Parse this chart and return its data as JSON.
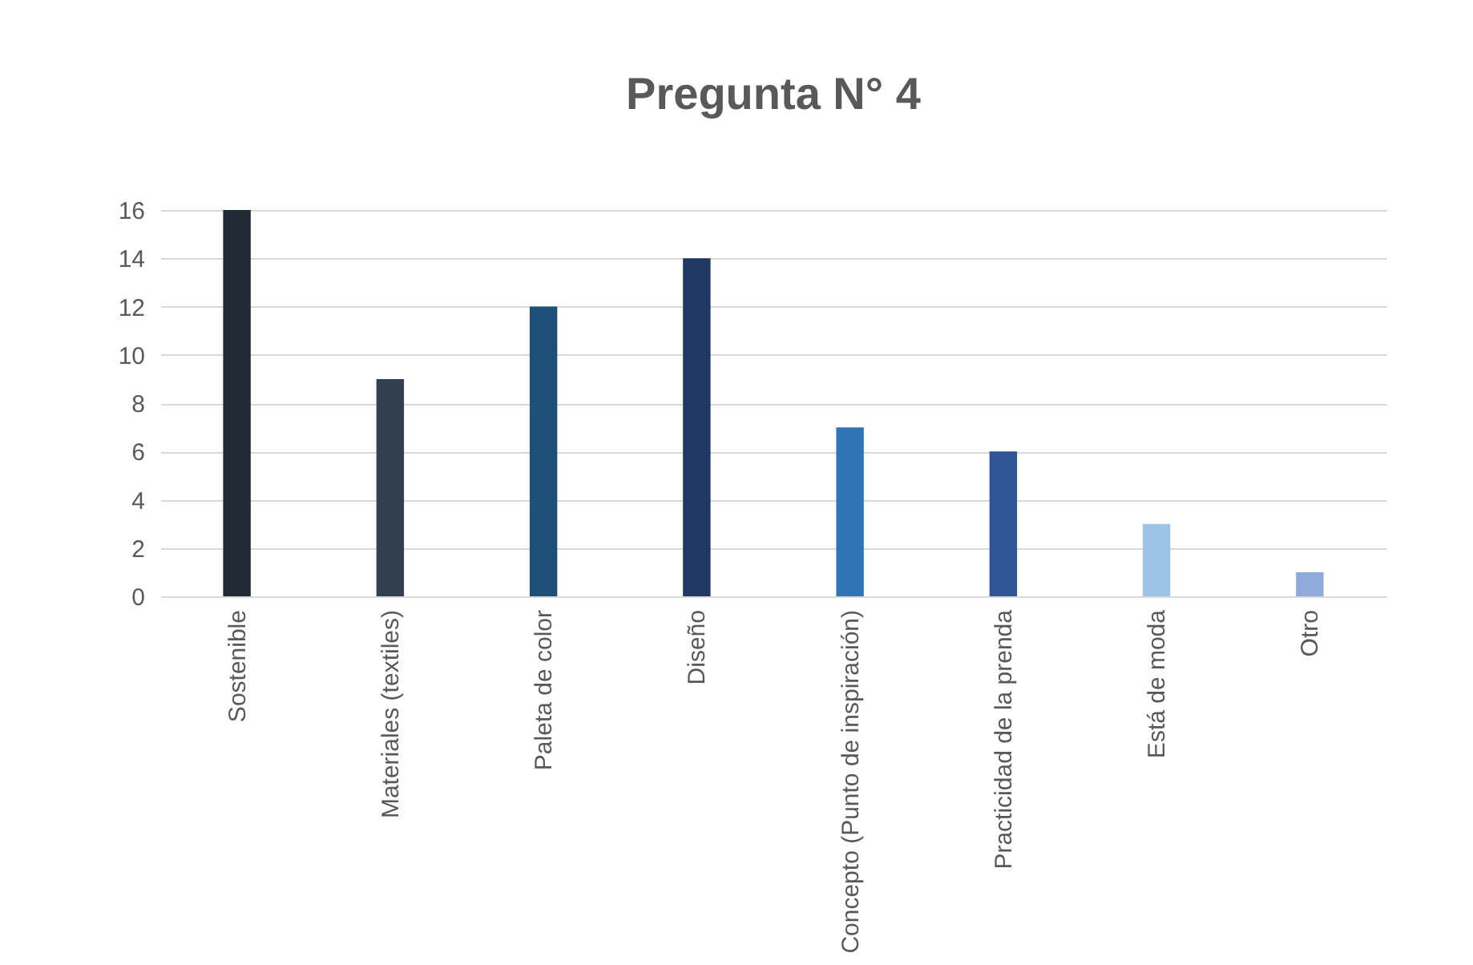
{
  "chart_data": {
    "type": "bar",
    "title": "Pregunta N° 4",
    "categories": [
      "Sostenible",
      "Materiales (textiles)",
      "Paleta de color",
      "Diseño",
      "Concepto (Punto de inspiración)",
      "Practicidad de la prenda",
      "Está de moda",
      "Otro"
    ],
    "values": [
      16,
      9,
      12,
      14,
      7,
      6,
      3,
      1
    ],
    "colors": [
      "#222a35",
      "#323f4f",
      "#1f4e79",
      "#203864",
      "#2e75b6",
      "#2f5597",
      "#9dc3e6",
      "#8faadc"
    ],
    "ylim": [
      0,
      16
    ],
    "yticks": [
      0,
      2,
      4,
      6,
      8,
      10,
      12,
      14,
      16
    ],
    "grid": "y"
  }
}
